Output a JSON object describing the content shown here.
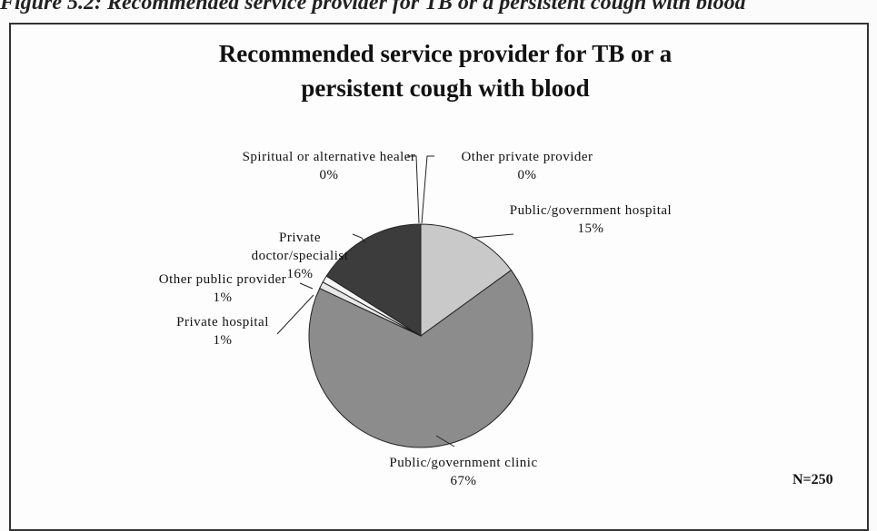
{
  "caption": "Figure 5.2: Recommended service provider for TB or a persistent cough with blood",
  "chart_data": {
    "type": "pie",
    "title": "Recommended service provider for TB or a persistent cough with blood",
    "categories": [
      "Public/government hospital",
      "Public/government clinic",
      "Private hospital",
      "Other public provider",
      "Private doctor/specialist",
      "Spiritual or alternative healer",
      "Other private provider"
    ],
    "values": [
      15,
      67,
      1,
      1,
      16,
      0,
      0
    ],
    "value_labels": [
      "15%",
      "67%",
      "1%",
      "1%",
      "16%",
      "0%",
      "0%"
    ],
    "colors": [
      "#c9c9c9",
      "#8c8c8c",
      "#e6e6e6",
      "#f5f5f5",
      "#3c3c3c",
      "#5a5a5a",
      "#eeeeee"
    ],
    "annotation": "N=250"
  }
}
